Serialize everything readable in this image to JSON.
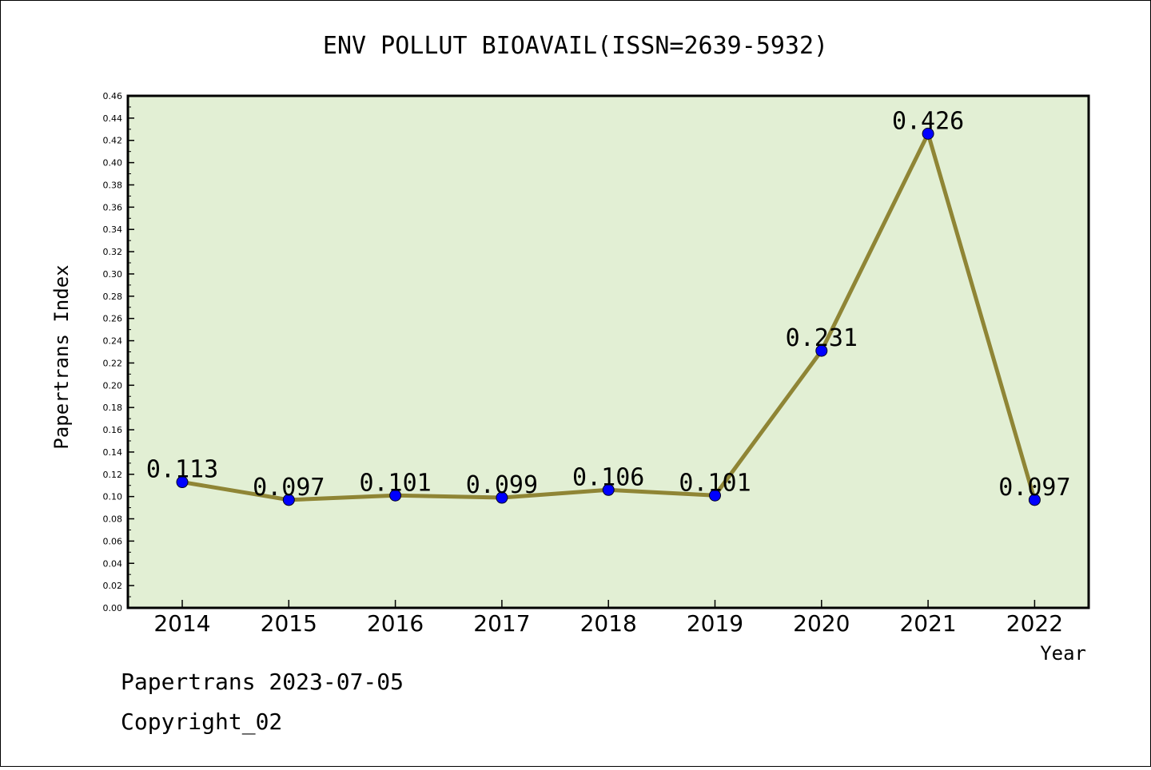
{
  "chart_data": {
    "type": "line",
    "title": "ENV POLLUT BIOAVAIL(ISSN=2639-5932)",
    "xlabel": "Year",
    "ylabel": "Papertrans Index",
    "categories": [
      "2014",
      "2015",
      "2016",
      "2017",
      "2018",
      "2019",
      "2020",
      "2021",
      "2022"
    ],
    "values": [
      0.113,
      0.097,
      0.101,
      0.099,
      0.106,
      0.101,
      0.231,
      0.426,
      0.097
    ],
    "data_labels": [
      "0.113",
      "0.097",
      "0.101",
      "0.099",
      "0.106",
      "0.101",
      "0.231",
      "0.426",
      "0.097"
    ],
    "ylim": [
      0,
      0.46
    ],
    "yticks": [
      "0.00",
      "0.02",
      "0.04",
      "0.06",
      "0.08",
      "0.10",
      "0.12",
      "0.14",
      "0.16",
      "0.18",
      "0.20",
      "0.22",
      "0.24",
      "0.26",
      "0.28",
      "0.30",
      "0.32",
      "0.34",
      "0.36",
      "0.38",
      "0.40",
      "0.42",
      "0.44",
      "0.46"
    ],
    "grid": false,
    "colors": {
      "plot_background": "#e2efd4",
      "line": "#8f8535",
      "marker": "#0000ff"
    }
  },
  "footer": {
    "line1": "Papertrans 2023-07-05",
    "line2": "Copyright_02"
  }
}
